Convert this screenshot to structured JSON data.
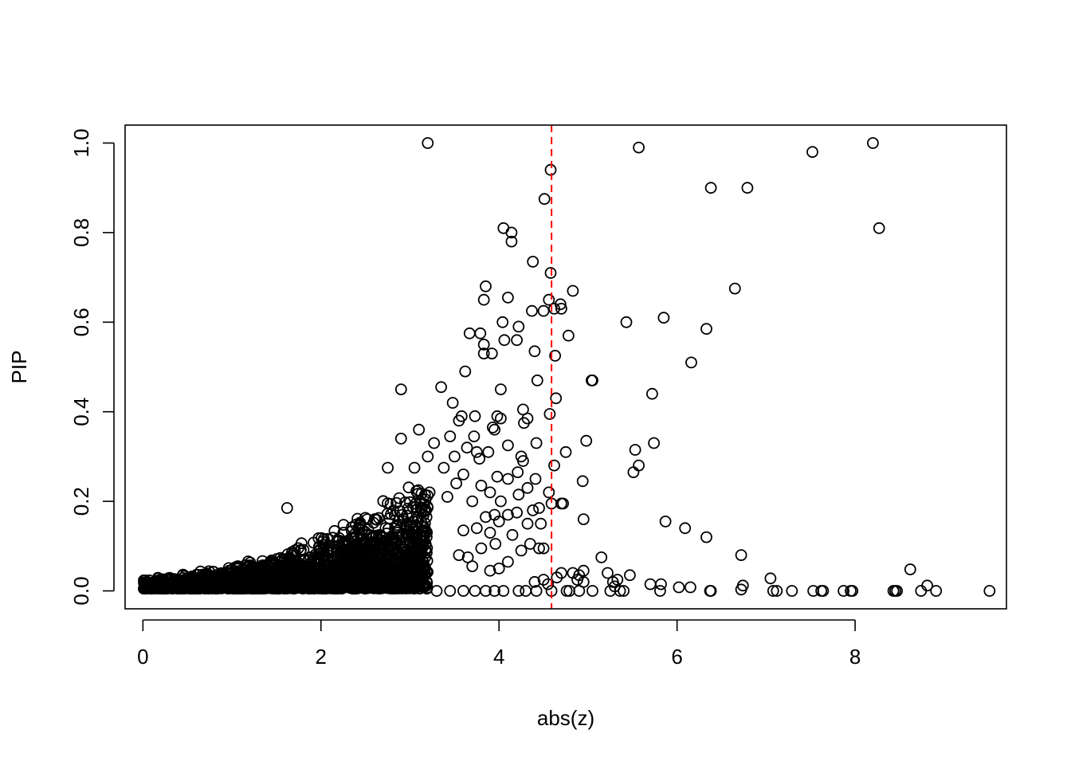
{
  "chart_data": {
    "type": "scatter",
    "title": "",
    "xlabel": "abs(z)",
    "ylabel": "PIP",
    "xlim": [
      -0.2,
      9.7
    ],
    "ylim": [
      -0.04,
      1.04
    ],
    "xticks": [
      "0",
      "2",
      "4",
      "6",
      "8"
    ],
    "yticks": [
      "0.0",
      "0.2",
      "0.4",
      "0.6",
      "0.8",
      "1.0"
    ],
    "grid": false,
    "legend": "none",
    "threshold_line": {
      "x": 4.59,
      "color": "#ff0000",
      "style": "dashed"
    },
    "point_color": "#000000",
    "series": [
      {
        "points": [
          [
            3.2,
            1.0
          ],
          [
            8.2,
            1.0
          ],
          [
            5.57,
            0.99
          ],
          [
            7.52,
            0.98
          ],
          [
            4.58,
            0.94
          ],
          [
            4.51,
            0.875
          ],
          [
            6.38,
            0.9
          ],
          [
            6.79,
            0.9
          ],
          [
            4.05,
            0.81
          ],
          [
            4.14,
            0.8
          ],
          [
            4.14,
            0.78
          ],
          [
            8.27,
            0.81
          ],
          [
            4.38,
            0.735
          ],
          [
            4.58,
            0.71
          ],
          [
            3.85,
            0.68
          ],
          [
            4.83,
            0.67
          ],
          [
            6.65,
            0.675
          ],
          [
            3.83,
            0.65
          ],
          [
            4.1,
            0.655
          ],
          [
            4.69,
            0.64
          ],
          [
            4.56,
            0.65
          ],
          [
            4.7,
            0.63
          ],
          [
            4.5,
            0.625
          ],
          [
            4.37,
            0.625
          ],
          [
            4.62,
            0.63
          ],
          [
            4.04,
            0.6
          ],
          [
            4.22,
            0.59
          ],
          [
            5.43,
            0.6
          ],
          [
            5.85,
            0.61
          ],
          [
            6.33,
            0.585
          ],
          [
            3.67,
            0.575
          ],
          [
            3.79,
            0.575
          ],
          [
            4.78,
            0.57
          ],
          [
            3.83,
            0.55
          ],
          [
            4.06,
            0.56
          ],
          [
            4.2,
            0.56
          ],
          [
            3.83,
            0.53
          ],
          [
            3.92,
            0.53
          ],
          [
            4.4,
            0.535
          ],
          [
            4.63,
            0.525
          ],
          [
            6.16,
            0.51
          ],
          [
            3.62,
            0.49
          ],
          [
            4.43,
            0.47
          ],
          [
            5.04,
            0.47
          ],
          [
            5.05,
            0.47
          ],
          [
            2.9,
            0.45
          ],
          [
            3.35,
            0.455
          ],
          [
            4.02,
            0.45
          ],
          [
            5.72,
            0.44
          ],
          [
            4.64,
            0.43
          ],
          [
            3.48,
            0.42
          ],
          [
            4.27,
            0.405
          ],
          [
            4.57,
            0.395
          ],
          [
            3.98,
            0.39
          ],
          [
            4.02,
            0.385
          ],
          [
            4.32,
            0.385
          ],
          [
            3.58,
            0.39
          ],
          [
            3.73,
            0.39
          ],
          [
            4.28,
            0.375
          ],
          [
            3.55,
            0.38
          ],
          [
            3.93,
            0.365
          ],
          [
            3.95,
            0.36
          ],
          [
            3.45,
            0.345
          ],
          [
            3.1,
            0.36
          ],
          [
            3.72,
            0.345
          ],
          [
            4.42,
            0.33
          ],
          [
            4.98,
            0.335
          ],
          [
            5.74,
            0.33
          ],
          [
            2.9,
            0.34
          ],
          [
            3.27,
            0.33
          ],
          [
            3.64,
            0.32
          ],
          [
            4.1,
            0.325
          ],
          [
            5.53,
            0.315
          ],
          [
            3.75,
            0.31
          ],
          [
            3.88,
            0.31
          ],
          [
            4.75,
            0.31
          ],
          [
            3.2,
            0.3
          ],
          [
            4.25,
            0.3
          ],
          [
            3.5,
            0.3
          ],
          [
            3.78,
            0.295
          ],
          [
            4.27,
            0.29
          ],
          [
            4.62,
            0.28
          ],
          [
            5.57,
            0.28
          ],
          [
            3.05,
            0.275
          ],
          [
            3.38,
            0.275
          ],
          [
            2.75,
            0.275
          ],
          [
            4.21,
            0.265
          ],
          [
            5.51,
            0.265
          ],
          [
            3.6,
            0.26
          ],
          [
            3.98,
            0.255
          ],
          [
            4.1,
            0.25
          ],
          [
            4.41,
            0.25
          ],
          [
            4.94,
            0.245
          ],
          [
            3.52,
            0.24
          ],
          [
            3.8,
            0.235
          ],
          [
            4.32,
            0.23
          ],
          [
            3.9,
            0.22
          ],
          [
            4.22,
            0.215
          ],
          [
            4.56,
            0.22
          ],
          [
            3.22,
            0.22
          ],
          [
            3.42,
            0.21
          ],
          [
            3.7,
            0.2
          ],
          [
            4.02,
            0.2
          ],
          [
            4.7,
            0.195
          ],
          [
            4.72,
            0.195
          ],
          [
            4.59,
            0.195
          ],
          [
            4.45,
            0.185
          ],
          [
            1.62,
            0.185
          ],
          [
            4.38,
            0.18
          ],
          [
            3.95,
            0.17
          ],
          [
            4.2,
            0.175
          ],
          [
            4.1,
            0.17
          ],
          [
            3.85,
            0.165
          ],
          [
            4.0,
            0.155
          ],
          [
            4.32,
            0.15
          ],
          [
            4.47,
            0.15
          ],
          [
            4.95,
            0.16
          ],
          [
            5.87,
            0.155
          ],
          [
            6.09,
            0.14
          ],
          [
            6.33,
            0.12
          ],
          [
            3.75,
            0.14
          ],
          [
            3.6,
            0.135
          ],
          [
            3.9,
            0.13
          ],
          [
            4.15,
            0.125
          ],
          [
            4.35,
            0.105
          ],
          [
            4.45,
            0.095
          ],
          [
            4.5,
            0.095
          ],
          [
            4.25,
            0.09
          ],
          [
            3.96,
            0.105
          ],
          [
            3.8,
            0.095
          ],
          [
            6.72,
            0.08
          ],
          [
            5.15,
            0.075
          ],
          [
            3.55,
            0.08
          ],
          [
            3.65,
            0.075
          ],
          [
            4.1,
            0.065
          ],
          [
            3.7,
            0.055
          ],
          [
            4.0,
            0.05
          ],
          [
            3.9,
            0.045
          ],
          [
            8.62,
            0.048
          ],
          [
            4.95,
            0.045
          ],
          [
            5.22,
            0.04
          ],
          [
            4.83,
            0.04
          ],
          [
            4.7,
            0.04
          ],
          [
            4.9,
            0.035
          ],
          [
            5.47,
            0.035
          ],
          [
            7.05,
            0.028
          ],
          [
            4.5,
            0.025
          ],
          [
            4.88,
            0.025
          ],
          [
            4.95,
            0.02
          ],
          [
            5.33,
            0.025
          ],
          [
            5.28,
            0.02
          ],
          [
            5.7,
            0.015
          ],
          [
            5.82,
            0.015
          ],
          [
            6.74,
            0.012
          ],
          [
            8.81,
            0.012
          ],
          [
            6.02,
            0.008
          ],
          [
            6.15,
            0.008
          ],
          [
            4.65,
            0.03
          ],
          [
            4.4,
            0.02
          ],
          [
            4.55,
            0.015
          ],
          [
            5.3,
            0.01
          ],
          [
            6.72,
            0.003
          ],
          [
            4.22,
            0.0
          ],
          [
            4.3,
            0.0
          ],
          [
            4.42,
            0.0
          ],
          [
            4.59,
            0.0
          ],
          [
            4.76,
            0.0
          ],
          [
            4.79,
            0.0
          ],
          [
            4.9,
            0.0
          ],
          [
            5.05,
            0.0
          ],
          [
            5.25,
            0.0
          ],
          [
            5.36,
            0.0
          ],
          [
            5.4,
            0.0
          ],
          [
            5.81,
            0.0
          ],
          [
            6.37,
            0.0
          ],
          [
            6.38,
            0.0
          ],
          [
            7.08,
            0.0
          ],
          [
            7.12,
            0.0
          ],
          [
            7.29,
            0.0
          ],
          [
            7.53,
            0.0
          ],
          [
            7.62,
            0.0
          ],
          [
            7.64,
            0.0
          ],
          [
            7.87,
            0.0
          ],
          [
            7.95,
            0.0
          ],
          [
            7.97,
            0.0
          ],
          [
            8.43,
            0.0
          ],
          [
            8.45,
            0.0
          ],
          [
            8.47,
            0.0
          ],
          [
            8.74,
            0.0
          ],
          [
            8.91,
            0.0
          ],
          [
            9.51,
            0.0
          ],
          [
            3.85,
            0.0
          ],
          [
            4.05,
            0.0
          ],
          [
            3.73,
            0.0
          ],
          [
            3.95,
            0.0
          ],
          [
            3.6,
            0.0
          ],
          [
            3.45,
            0.0
          ],
          [
            3.3,
            0.0
          ]
        ]
      }
    ]
  }
}
